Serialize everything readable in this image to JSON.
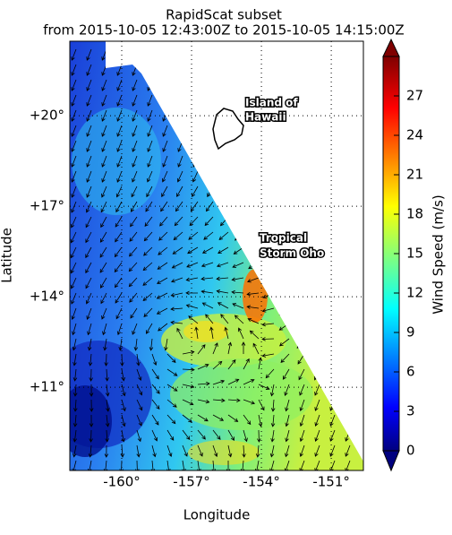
{
  "chart_data": {
    "type": "map",
    "title": "RapidScat subset",
    "subtitle": "from 2015-10-05 12:43:00Z to 2015-10-05 14:15:00Z",
    "xlabel": "Longitude",
    "ylabel": "Latitude",
    "xlim": [
      -162.23,
      -149.62
    ],
    "ylim": [
      8.24,
      22.47
    ],
    "xticks": [
      {
        "value": -160,
        "label": "-160°"
      },
      {
        "value": -157,
        "label": "-157°"
      },
      {
        "value": -154,
        "label": "-154°"
      },
      {
        "value": -151,
        "label": "-151°"
      }
    ],
    "yticks": [
      {
        "value": 11,
        "label": "+11°"
      },
      {
        "value": 14,
        "label": "+14°"
      },
      {
        "value": 17,
        "label": "+17°"
      },
      {
        "value": 20,
        "label": "+20°"
      }
    ],
    "grid": true,
    "colorbar": {
      "label": "Wind Speed (m/s)",
      "lim": [
        0,
        30
      ],
      "ticks": [
        0,
        3,
        6,
        9,
        12,
        15,
        18,
        21,
        24,
        27
      ]
    },
    "annotations": [
      {
        "lines": [
          "Island of",
          "Hawaii"
        ]
      },
      {
        "lines": [
          "Tropical",
          "Storm Oho"
        ]
      }
    ]
  }
}
